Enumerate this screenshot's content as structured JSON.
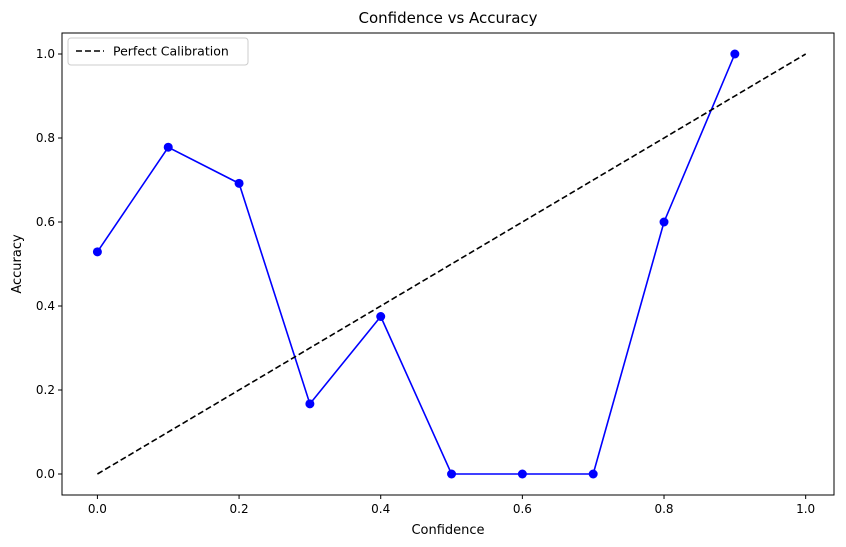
{
  "chart_data": {
    "type": "line",
    "title": "Confidence vs Accuracy",
    "xlabel": "Confidence",
    "ylabel": "Accuracy",
    "xlim": [
      -0.05,
      1.04
    ],
    "ylim": [
      -0.05,
      1.05
    ],
    "xticks": [
      0.0,
      0.2,
      0.4,
      0.6,
      0.8,
      1.0
    ],
    "xtick_labels": [
      "0.0",
      "0.2",
      "0.4",
      "0.6",
      "0.8",
      "1.0"
    ],
    "yticks": [
      0.0,
      0.2,
      0.4,
      0.6,
      0.8,
      1.0
    ],
    "ytick_labels": [
      "0.0",
      "0.2",
      "0.4",
      "0.6",
      "0.8",
      "1.0"
    ],
    "grid": false,
    "legend": {
      "position": "top-left",
      "entries": [
        "Perfect Calibration"
      ]
    },
    "series": [
      {
        "name": "",
        "style": "solid-marker",
        "color": "#0000ff",
        "x": [
          0.0,
          0.1,
          0.2,
          0.3,
          0.4,
          0.5,
          0.6,
          0.7,
          0.8,
          0.9
        ],
        "y": [
          0.529,
          0.778,
          0.692,
          0.167,
          0.375,
          0.0,
          0.0,
          0.0,
          0.6,
          1.0
        ]
      },
      {
        "name": "Perfect Calibration",
        "style": "dashed",
        "color": "#000000",
        "x": [
          0.0,
          1.0
        ],
        "y": [
          0.0,
          1.0
        ]
      }
    ]
  }
}
